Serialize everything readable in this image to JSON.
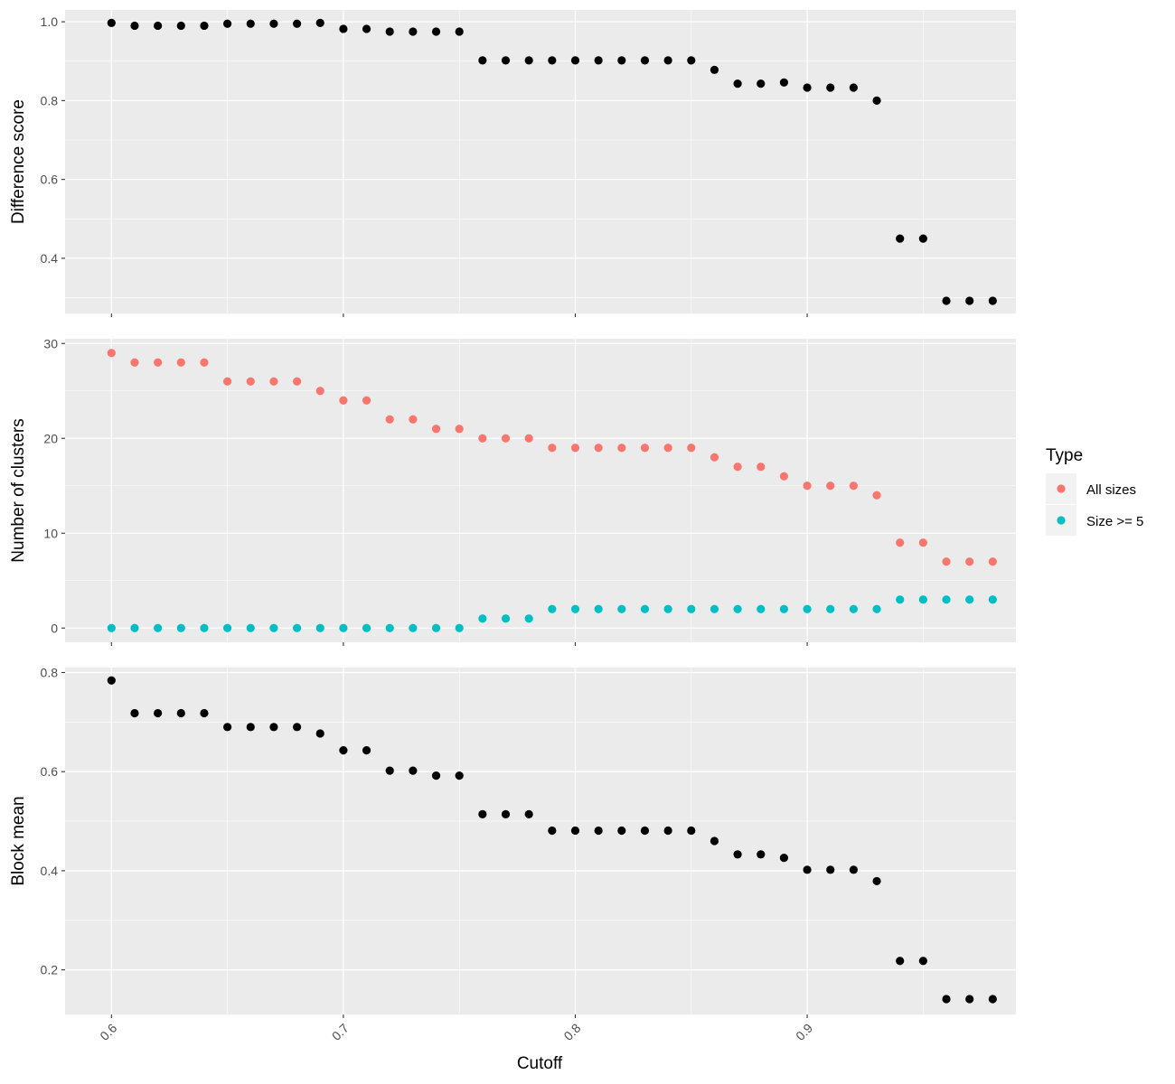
{
  "chart_data": [
    {
      "type": "scatter",
      "ylabel": "Difference score",
      "xlabel": "Cutoff",
      "xlim": [
        0.58,
        0.99
      ],
      "ylim": [
        0.26,
        1.03
      ],
      "x_ticks": [
        "0.6",
        "0.7",
        "0.8",
        "0.9"
      ],
      "y_ticks": [
        "0.4",
        "0.6",
        "0.8",
        "1.0"
      ],
      "grid": true,
      "series": [
        {
          "color": "#000000",
          "x": [
            0.6,
            0.61,
            0.62,
            0.63,
            0.64,
            0.65,
            0.66,
            0.67,
            0.68,
            0.69,
            0.7,
            0.71,
            0.72,
            0.73,
            0.74,
            0.75,
            0.76,
            0.77,
            0.78,
            0.79,
            0.8,
            0.81,
            0.82,
            0.83,
            0.84,
            0.85,
            0.86,
            0.87,
            0.88,
            0.89,
            0.9,
            0.91,
            0.92,
            0.93,
            0.94,
            0.95,
            0.96,
            0.97,
            0.98
          ],
          "values": [
            0.997,
            0.99,
            0.99,
            0.99,
            0.99,
            0.995,
            0.995,
            0.995,
            0.995,
            0.997,
            0.982,
            0.982,
            0.975,
            0.975,
            0.975,
            0.975,
            0.902,
            0.902,
            0.902,
            0.902,
            0.902,
            0.902,
            0.902,
            0.902,
            0.902,
            0.902,
            0.878,
            0.843,
            0.843,
            0.846,
            0.833,
            0.833,
            0.833,
            0.8,
            0.45,
            0.45,
            0.292,
            0.292,
            0.292
          ]
        }
      ]
    },
    {
      "type": "scatter",
      "ylabel": "Number of clusters",
      "xlabel": "Cutoff",
      "xlim": [
        0.58,
        0.99
      ],
      "ylim": [
        -1.5,
        30.5
      ],
      "x_ticks": [
        "0.6",
        "0.7",
        "0.8",
        "0.9"
      ],
      "y_ticks": [
        "0",
        "10",
        "20",
        "30"
      ],
      "grid": true,
      "series": [
        {
          "name": "All sizes",
          "color": "#F8766D",
          "x": [
            0.6,
            0.61,
            0.62,
            0.63,
            0.64,
            0.65,
            0.66,
            0.67,
            0.68,
            0.69,
            0.7,
            0.71,
            0.72,
            0.73,
            0.74,
            0.75,
            0.76,
            0.77,
            0.78,
            0.79,
            0.8,
            0.81,
            0.82,
            0.83,
            0.84,
            0.85,
            0.86,
            0.87,
            0.88,
            0.89,
            0.9,
            0.91,
            0.92,
            0.93,
            0.94,
            0.95,
            0.96,
            0.97,
            0.98
          ],
          "values": [
            29,
            28,
            28,
            28,
            28,
            26,
            26,
            26,
            26,
            25,
            24,
            24,
            22,
            22,
            21,
            21,
            20,
            20,
            20,
            19,
            19,
            19,
            19,
            19,
            19,
            19,
            18,
            17,
            17,
            16,
            15,
            15,
            15,
            14,
            9,
            9,
            7,
            7,
            7
          ]
        },
        {
          "name": "Size >= 5",
          "color": "#00BFC4",
          "x": [
            0.6,
            0.61,
            0.62,
            0.63,
            0.64,
            0.65,
            0.66,
            0.67,
            0.68,
            0.69,
            0.7,
            0.71,
            0.72,
            0.73,
            0.74,
            0.75,
            0.76,
            0.77,
            0.78,
            0.79,
            0.8,
            0.81,
            0.82,
            0.83,
            0.84,
            0.85,
            0.86,
            0.87,
            0.88,
            0.89,
            0.9,
            0.91,
            0.92,
            0.93,
            0.94,
            0.95,
            0.96,
            0.97,
            0.98
          ],
          "values": [
            0,
            0,
            0,
            0,
            0,
            0,
            0,
            0,
            0,
            0,
            0,
            0,
            0,
            0,
            0,
            0,
            1,
            1,
            1,
            2,
            2,
            2,
            2,
            2,
            2,
            2,
            2,
            2,
            2,
            2,
            2,
            2,
            2,
            2,
            3,
            3,
            3,
            3,
            3
          ]
        }
      ]
    },
    {
      "type": "scatter",
      "ylabel": "Block mean",
      "xlabel": "Cutoff",
      "xlim": [
        0.58,
        0.99
      ],
      "ylim": [
        0.11,
        0.81
      ],
      "x_ticks": [
        "0.6",
        "0.7",
        "0.8",
        "0.9"
      ],
      "y_ticks": [
        "0.2",
        "0.4",
        "0.6",
        "0.8"
      ],
      "grid": true,
      "series": [
        {
          "color": "#000000",
          "x": [
            0.6,
            0.61,
            0.62,
            0.63,
            0.64,
            0.65,
            0.66,
            0.67,
            0.68,
            0.69,
            0.7,
            0.71,
            0.72,
            0.73,
            0.74,
            0.75,
            0.76,
            0.77,
            0.78,
            0.79,
            0.8,
            0.81,
            0.82,
            0.83,
            0.84,
            0.85,
            0.86,
            0.87,
            0.88,
            0.89,
            0.9,
            0.91,
            0.92,
            0.93,
            0.94,
            0.95,
            0.96,
            0.97,
            0.98
          ],
          "values": [
            0.784,
            0.718,
            0.718,
            0.718,
            0.718,
            0.69,
            0.69,
            0.69,
            0.69,
            0.677,
            0.643,
            0.643,
            0.602,
            0.602,
            0.592,
            0.592,
            0.514,
            0.514,
            0.514,
            0.481,
            0.481,
            0.481,
            0.481,
            0.481,
            0.481,
            0.481,
            0.46,
            0.433,
            0.433,
            0.426,
            0.402,
            0.402,
            0.402,
            0.379,
            0.218,
            0.218,
            0.141,
            0.141,
            0.141
          ]
        }
      ]
    }
  ],
  "legend": {
    "title": "Type",
    "placement": "right",
    "items": [
      {
        "label": "All sizes",
        "color": "#F8766D"
      },
      {
        "label": "Size >= 5",
        "color": "#00BFC4"
      }
    ]
  },
  "x_axis": {
    "title": "Cutoff",
    "ticks": [
      "0.6",
      "0.7",
      "0.8",
      "0.9"
    ],
    "tick_values": [
      0.6,
      0.7,
      0.8,
      0.9
    ]
  },
  "colors": {
    "panel_background": "#EBEBEB",
    "grid": "#FFFFFF",
    "tick_text": "#4D4D4D"
  }
}
